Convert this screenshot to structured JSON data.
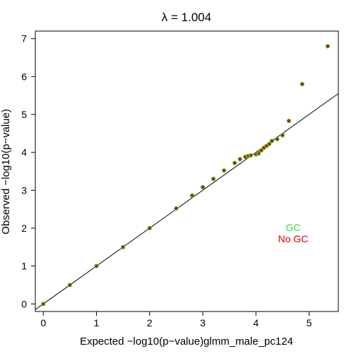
{
  "chart_data": {
    "type": "scatter",
    "title": "λ = 1.004",
    "xlabel": "Expected −log10(p−value)glmm_male_pc124",
    "ylabel": "Observed −log10(p−value)",
    "xlim": [
      -0.15,
      5.55
    ],
    "ylim": [
      -0.2,
      7.2
    ],
    "xticks": [
      "0",
      "1",
      "2",
      "3",
      "4",
      "5"
    ],
    "yticks": [
      "0",
      "1",
      "2",
      "3",
      "4",
      "5",
      "6",
      "7"
    ],
    "reference_line": {
      "slope": 1,
      "intercept": 0,
      "color": "#000000"
    },
    "legend": {
      "position": "right",
      "entries": [
        {
          "label": "GC",
          "color": "#33dd33"
        },
        {
          "label": "No GC",
          "color": "#dd0000"
        }
      ]
    },
    "series": [
      {
        "name": "No GC",
        "color": "#dd0000",
        "x": [
          0.0,
          0.5,
          1.0,
          1.5,
          2.0,
          2.5,
          2.8,
          3.0,
          3.2,
          3.4,
          3.6,
          3.7,
          3.8,
          3.85,
          3.9,
          4.0,
          4.05,
          4.1,
          4.15,
          4.2,
          4.25,
          4.3,
          4.4,
          4.5,
          4.62,
          4.87,
          5.35
        ],
        "y": [
          0.0,
          0.5,
          1.0,
          1.5,
          2.0,
          2.52,
          2.86,
          3.08,
          3.3,
          3.52,
          3.72,
          3.82,
          3.88,
          3.9,
          3.92,
          3.95,
          3.97,
          4.05,
          4.12,
          4.17,
          4.22,
          4.3,
          4.35,
          4.45,
          4.83,
          5.8,
          6.8
        ]
      },
      {
        "name": "GC",
        "color": "#33dd33",
        "x": [
          0.0,
          0.5,
          1.0,
          1.5,
          2.0,
          2.5,
          2.8,
          3.0,
          3.2,
          3.4,
          3.6,
          3.7,
          3.8,
          3.85,
          3.9,
          4.0,
          4.05,
          4.1,
          4.15,
          4.2,
          4.25,
          4.3,
          4.4,
          4.5,
          4.62,
          4.87,
          5.35
        ],
        "y": [
          0.0,
          0.5,
          1.0,
          1.5,
          2.0,
          2.52,
          2.86,
          3.08,
          3.3,
          3.52,
          3.72,
          3.82,
          3.88,
          3.9,
          3.92,
          3.95,
          3.97,
          4.05,
          4.12,
          4.17,
          4.22,
          4.3,
          4.35,
          4.45,
          4.83,
          5.8,
          6.8
        ]
      }
    ]
  }
}
